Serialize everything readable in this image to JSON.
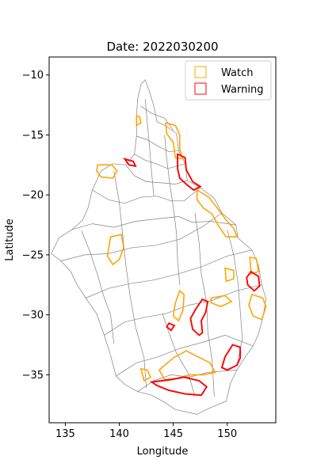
{
  "chart_data": {
    "type": "map",
    "title": "Date: 2022030200",
    "xlabel": "Longitude",
    "ylabel": "Latitude",
    "xlim": [
      133.5,
      154.5
    ],
    "ylim": [
      -39.0,
      -8.5
    ],
    "xticks": [
      135,
      140,
      145,
      150
    ],
    "yticks": [
      -10,
      -15,
      -20,
      -25,
      -30,
      -35
    ],
    "grid": false,
    "legend": {
      "placement": "top-right",
      "entries": [
        {
          "label": "Watch",
          "color": "#ffa500"
        },
        {
          "label": "Warning",
          "color": "#ff0000"
        }
      ]
    },
    "outline": [
      [
        142.0,
        -10.8
      ],
      [
        142.4,
        -10.4
      ],
      [
        142.8,
        -11.4
      ],
      [
        143.2,
        -12.6
      ],
      [
        143.5,
        -13.9
      ],
      [
        144.4,
        -14.3
      ],
      [
        145.3,
        -14.9
      ],
      [
        145.5,
        -16.3
      ],
      [
        146.1,
        -17.4
      ],
      [
        146.3,
        -18.8
      ],
      [
        147.5,
        -19.4
      ],
      [
        148.8,
        -20.3
      ],
      [
        149.5,
        -21.5
      ],
      [
        150.8,
        -22.5
      ],
      [
        151.0,
        -23.6
      ],
      [
        152.3,
        -24.6
      ],
      [
        152.9,
        -25.9
      ],
      [
        153.2,
        -27.5
      ],
      [
        153.6,
        -28.7
      ],
      [
        153.3,
        -30.2
      ],
      [
        152.9,
        -31.6
      ],
      [
        152.4,
        -32.6
      ],
      [
        151.6,
        -33.6
      ],
      [
        150.9,
        -34.6
      ],
      [
        150.3,
        -35.7
      ],
      [
        149.9,
        -37.2
      ],
      [
        148.3,
        -37.8
      ],
      [
        147.2,
        -38.3
      ],
      [
        145.2,
        -37.9
      ],
      [
        144.2,
        -37.3
      ],
      [
        143.0,
        -36.7
      ],
      [
        141.7,
        -36.4
      ],
      [
        140.5,
        -35.8
      ],
      [
        139.7,
        -35.1
      ],
      [
        139.2,
        -33.4
      ],
      [
        138.6,
        -31.7
      ],
      [
        137.9,
        -29.9
      ],
      [
        136.9,
        -28.6
      ],
      [
        136.1,
        -27.5
      ],
      [
        135.5,
        -26.4
      ],
      [
        134.6,
        -25.5
      ],
      [
        133.7,
        -24.9
      ],
      [
        134.4,
        -23.6
      ],
      [
        135.6,
        -22.9
      ],
      [
        136.6,
        -22.1
      ],
      [
        137.1,
        -21.1
      ],
      [
        137.5,
        -19.6
      ],
      [
        138.3,
        -18.0
      ],
      [
        139.4,
        -17.4
      ],
      [
        140.6,
        -17.5
      ],
      [
        141.4,
        -16.6
      ],
      [
        141.6,
        -15.1
      ],
      [
        141.6,
        -13.4
      ],
      [
        141.7,
        -12.0
      ],
      [
        142.0,
        -10.8
      ]
    ],
    "basin_lines": [
      [
        [
          137.5,
          -19.6
        ],
        [
          139.0,
          -20.4
        ],
        [
          140.5,
          -20.7
        ],
        [
          142.0,
          -20.2
        ],
        [
          143.5,
          -20.1
        ]
      ],
      [
        [
          135.6,
          -22.9
        ],
        [
          137.5,
          -22.4
        ],
        [
          139.5,
          -22.7
        ],
        [
          141.5,
          -22.2
        ],
        [
          143.5,
          -22.0
        ],
        [
          145.5,
          -21.8
        ]
      ],
      [
        [
          134.6,
          -25.5
        ],
        [
          136.8,
          -25.0
        ],
        [
          139.0,
          -24.9
        ],
        [
          141.2,
          -24.4
        ],
        [
          143.4,
          -24.2
        ],
        [
          145.6,
          -23.7
        ],
        [
          147.8,
          -22.6
        ],
        [
          149.5,
          -21.5
        ]
      ],
      [
        [
          136.9,
          -28.6
        ],
        [
          139.0,
          -27.8
        ],
        [
          141.0,
          -27.4
        ],
        [
          143.2,
          -27.1
        ],
        [
          145.4,
          -26.6
        ],
        [
          147.6,
          -26.0
        ],
        [
          150.0,
          -25.1
        ],
        [
          152.3,
          -24.6
        ]
      ],
      [
        [
          138.6,
          -31.7
        ],
        [
          140.5,
          -30.6
        ],
        [
          142.4,
          -30.2
        ],
        [
          144.3,
          -29.9
        ],
        [
          146.4,
          -29.2
        ],
        [
          148.6,
          -28.8
        ],
        [
          150.8,
          -28.0
        ],
        [
          153.2,
          -27.5
        ]
      ],
      [
        [
          139.7,
          -35.1
        ],
        [
          141.6,
          -34.0
        ],
        [
          143.6,
          -33.5
        ],
        [
          145.6,
          -32.8
        ],
        [
          147.7,
          -32.3
        ],
        [
          149.8,
          -31.7
        ],
        [
          152.4,
          -32.6
        ]
      ],
      [
        [
          141.7,
          -36.4
        ],
        [
          143.2,
          -35.5
        ],
        [
          144.8,
          -35.0
        ],
        [
          146.5,
          -35.2
        ],
        [
          148.2,
          -34.8
        ],
        [
          150.9,
          -34.6
        ]
      ],
      [
        [
          142.0,
          -12.6
        ],
        [
          143.0,
          -13.2
        ],
        [
          144.2,
          -13.6
        ],
        [
          145.0,
          -14.6
        ]
      ],
      [
        [
          141.6,
          -15.1
        ],
        [
          142.6,
          -15.4
        ],
        [
          143.5,
          -15.9
        ],
        [
          144.6,
          -16.4
        ],
        [
          145.5,
          -16.3
        ]
      ],
      [
        [
          141.4,
          -16.6
        ],
        [
          142.4,
          -17.1
        ],
        [
          143.4,
          -17.4
        ],
        [
          144.5,
          -17.8
        ],
        [
          146.1,
          -17.4
        ]
      ],
      [
        [
          140.6,
          -17.5
        ],
        [
          141.4,
          -18.4
        ],
        [
          142.5,
          -18.9
        ],
        [
          144.0,
          -19.0
        ],
        [
          145.2,
          -19.1
        ],
        [
          146.3,
          -18.8
        ]
      ],
      [
        [
          143.5,
          -20.1
        ],
        [
          144.8,
          -20.5
        ],
        [
          146.0,
          -20.5
        ],
        [
          147.5,
          -19.4
        ]
      ],
      [
        [
          145.5,
          -21.8
        ],
        [
          146.8,
          -22.3
        ],
        [
          148.4,
          -22.2
        ],
        [
          150.8,
          -22.5
        ]
      ],
      [
        [
          142.4,
          -12.0
        ],
        [
          142.6,
          -14.0
        ],
        [
          142.8,
          -16.0
        ],
        [
          143.0,
          -18.2
        ],
        [
          143.2,
          -20.1
        ]
      ],
      [
        [
          144.2,
          -15.0
        ],
        [
          144.4,
          -17.0
        ],
        [
          144.7,
          -19.2
        ],
        [
          145.0,
          -21.0
        ],
        [
          145.3,
          -23.2
        ],
        [
          145.4,
          -25.5
        ],
        [
          145.6,
          -27.5
        ]
      ],
      [
        [
          139.5,
          -18.0
        ],
        [
          140.0,
          -20.6
        ],
        [
          140.3,
          -23.2
        ],
        [
          140.6,
          -25.8
        ],
        [
          141.0,
          -28.4
        ],
        [
          141.5,
          -31.0
        ],
        [
          142.3,
          -33.6
        ],
        [
          142.5,
          -36.1
        ]
      ],
      [
        [
          147.0,
          -21.5
        ],
        [
          147.4,
          -24.0
        ],
        [
          147.6,
          -26.6
        ],
        [
          148.1,
          -29.0
        ],
        [
          148.2,
          -31.4
        ],
        [
          148.6,
          -33.8
        ],
        [
          148.8,
          -36.8
        ]
      ],
      [
        [
          150.0,
          -22.9
        ],
        [
          150.6,
          -25.0
        ],
        [
          151.0,
          -27.3
        ],
        [
          151.2,
          -29.6
        ],
        [
          151.4,
          -32.0
        ],
        [
          150.9,
          -34.2
        ]
      ],
      [
        [
          136.5,
          -23.0
        ],
        [
          137.3,
          -24.8
        ],
        [
          138.0,
          -26.7
        ],
        [
          138.5,
          -28.3
        ],
        [
          139.2,
          -30.0
        ],
        [
          139.5,
          -32.4
        ]
      ],
      [
        [
          144.0,
          -29.9
        ],
        [
          144.6,
          -31.5
        ],
        [
          145.3,
          -33.2
        ],
        [
          146.4,
          -34.9
        ],
        [
          147.0,
          -36.8
        ]
      ]
    ],
    "watch_regions": [
      [
        [
          144.3,
          -14.0
        ],
        [
          145.2,
          -14.2
        ],
        [
          145.6,
          -15.0
        ],
        [
          145.6,
          -16.2
        ],
        [
          145.9,
          -17.0
        ],
        [
          145.2,
          -16.9
        ],
        [
          145.0,
          -15.6
        ],
        [
          144.4,
          -14.9
        ],
        [
          144.3,
          -14.0
        ]
      ],
      [
        [
          141.6,
          -13.4
        ],
        [
          141.9,
          -13.5
        ],
        [
          142.0,
          -14.0
        ],
        [
          141.6,
          -14.2
        ],
        [
          141.6,
          -13.4
        ]
      ],
      [
        [
          138.0,
          -17.5
        ],
        [
          139.3,
          -17.5
        ],
        [
          139.8,
          -18.0
        ],
        [
          139.4,
          -18.6
        ],
        [
          138.3,
          -18.5
        ],
        [
          137.9,
          -18.0
        ],
        [
          138.0,
          -17.5
        ]
      ],
      [
        [
          147.2,
          -19.6
        ],
        [
          148.3,
          -20.2
        ],
        [
          149.0,
          -21.0
        ],
        [
          149.9,
          -22.1
        ],
        [
          150.6,
          -22.8
        ],
        [
          150.9,
          -23.5
        ],
        [
          149.9,
          -23.5
        ],
        [
          149.2,
          -22.6
        ],
        [
          148.6,
          -21.6
        ],
        [
          147.8,
          -21.1
        ],
        [
          147.2,
          -20.4
        ],
        [
          147.2,
          -19.6
        ]
      ],
      [
        [
          139.2,
          -23.5
        ],
        [
          140.2,
          -23.3
        ],
        [
          140.4,
          -24.4
        ],
        [
          140.0,
          -25.4
        ],
        [
          139.4,
          -25.8
        ],
        [
          138.9,
          -25.1
        ],
        [
          139.2,
          -23.5
        ]
      ],
      [
        [
          152.1,
          -25.2
        ],
        [
          152.7,
          -25.3
        ],
        [
          152.9,
          -26.4
        ],
        [
          152.2,
          -26.6
        ],
        [
          152.1,
          -25.2
        ]
      ],
      [
        [
          149.8,
          -26.1
        ],
        [
          150.6,
          -26.3
        ],
        [
          150.6,
          -27.0
        ],
        [
          149.9,
          -27.2
        ],
        [
          149.8,
          -26.1
        ]
      ],
      [
        [
          152.3,
          -28.3
        ],
        [
          153.3,
          -28.6
        ],
        [
          153.6,
          -29.3
        ],
        [
          153.2,
          -30.4
        ],
        [
          152.4,
          -30.1
        ],
        [
          152.0,
          -29.2
        ],
        [
          152.3,
          -28.3
        ]
      ],
      [
        [
          148.5,
          -28.6
        ],
        [
          149.8,
          -28.4
        ],
        [
          150.4,
          -28.9
        ],
        [
          149.4,
          -29.3
        ],
        [
          148.5,
          -29.0
        ],
        [
          148.5,
          -28.6
        ]
      ],
      [
        [
          145.6,
          -28.0
        ],
        [
          146.0,
          -28.3
        ],
        [
          145.9,
          -29.6
        ],
        [
          145.5,
          -30.5
        ],
        [
          145.0,
          -30.1
        ],
        [
          145.2,
          -29.0
        ],
        [
          145.6,
          -28.0
        ]
      ],
      [
        [
          145.0,
          -33.6
        ],
        [
          146.2,
          -33.0
        ],
        [
          147.3,
          -33.5
        ],
        [
          148.4,
          -34.0
        ],
        [
          148.9,
          -34.8
        ],
        [
          147.8,
          -35.0
        ],
        [
          146.5,
          -35.0
        ],
        [
          145.3,
          -35.3
        ],
        [
          144.2,
          -35.4
        ],
        [
          143.7,
          -34.6
        ],
        [
          145.0,
          -33.6
        ]
      ],
      [
        [
          142.0,
          -34.5
        ],
        [
          142.6,
          -34.6
        ],
        [
          142.9,
          -35.2
        ],
        [
          142.3,
          -35.5
        ],
        [
          142.0,
          -34.5
        ]
      ]
    ],
    "warning_regions": [
      [
        [
          140.5,
          -17.0
        ],
        [
          141.3,
          -17.2
        ],
        [
          141.5,
          -17.6
        ],
        [
          140.9,
          -17.5
        ],
        [
          140.5,
          -17.0
        ]
      ],
      [
        [
          145.4,
          -16.6
        ],
        [
          146.1,
          -16.9
        ],
        [
          146.2,
          -17.9
        ],
        [
          146.8,
          -18.9
        ],
        [
          147.5,
          -19.3
        ],
        [
          146.9,
          -19.6
        ],
        [
          146.2,
          -19.1
        ],
        [
          145.6,
          -18.6
        ],
        [
          145.4,
          -17.8
        ],
        [
          145.4,
          -16.6
        ]
      ],
      [
        [
          152.2,
          -26.4
        ],
        [
          152.9,
          -26.8
        ],
        [
          153.0,
          -27.6
        ],
        [
          152.5,
          -28.0
        ],
        [
          151.9,
          -27.5
        ],
        [
          151.8,
          -26.9
        ],
        [
          152.2,
          -26.4
        ]
      ],
      [
        [
          147.7,
          -28.7
        ],
        [
          148.2,
          -28.9
        ],
        [
          148.0,
          -29.8
        ],
        [
          147.6,
          -30.5
        ],
        [
          147.7,
          -31.5
        ],
        [
          147.4,
          -31.7
        ],
        [
          146.8,
          -31.2
        ],
        [
          146.6,
          -30.3
        ],
        [
          147.1,
          -29.5
        ],
        [
          147.7,
          -28.7
        ]
      ],
      [
        [
          150.5,
          -32.5
        ],
        [
          151.2,
          -32.7
        ],
        [
          151.2,
          -33.6
        ],
        [
          150.9,
          -34.2
        ],
        [
          150.0,
          -34.6
        ],
        [
          149.5,
          -34.4
        ],
        [
          149.8,
          -33.5
        ],
        [
          150.5,
          -32.5
        ]
      ],
      [
        [
          144.6,
          -30.7
        ],
        [
          145.1,
          -30.9
        ],
        [
          144.8,
          -31.3
        ],
        [
          144.4,
          -31.0
        ],
        [
          144.6,
          -30.7
        ]
      ],
      [
        [
          143.0,
          -35.6
        ],
        [
          144.8,
          -35.4
        ],
        [
          146.0,
          -35.2
        ],
        [
          147.4,
          -35.5
        ],
        [
          148.1,
          -36.0
        ],
        [
          147.6,
          -36.7
        ],
        [
          146.1,
          -36.6
        ],
        [
          144.6,
          -36.3
        ],
        [
          143.5,
          -35.9
        ],
        [
          143.0,
          -35.6
        ]
      ]
    ]
  }
}
